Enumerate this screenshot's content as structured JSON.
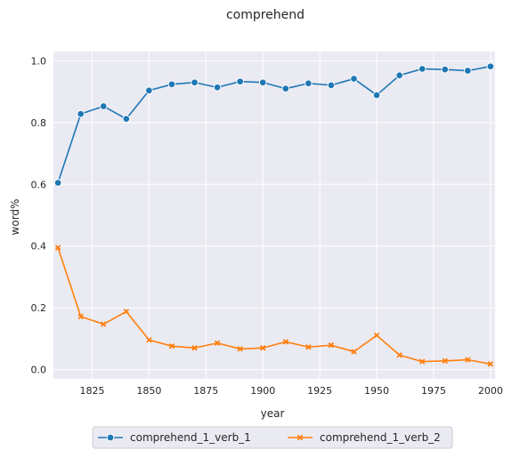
{
  "chart_data": {
    "type": "line",
    "title": "comprehend",
    "xlabel": "year",
    "ylabel": "word%",
    "xlim": [
      1808,
      2002
    ],
    "ylim": [
      -0.03,
      1.03
    ],
    "xticks": [
      1825,
      1850,
      1875,
      1900,
      1925,
      1950,
      1975,
      2000
    ],
    "yticks": [
      0.0,
      0.2,
      0.4,
      0.6,
      0.8,
      1.0
    ],
    "grid": true,
    "background": "#eaeaf2",
    "legend_position": "bottom-center",
    "x": [
      1810,
      1820,
      1830,
      1840,
      1850,
      1860,
      1870,
      1880,
      1890,
      1900,
      1910,
      1920,
      1930,
      1940,
      1950,
      1960,
      1970,
      1980,
      1990,
      2000
    ],
    "series": [
      {
        "name": "comprehend_1_verb_1",
        "color": "#1f77b4",
        "marker": "circle",
        "values": [
          0.605,
          0.828,
          0.853,
          0.812,
          0.904,
          0.924,
          0.93,
          0.914,
          0.933,
          0.93,
          0.91,
          0.927,
          0.921,
          0.942,
          0.889,
          0.953,
          0.974,
          0.972,
          0.968,
          0.982
        ]
      },
      {
        "name": "comprehend_1_verb_2",
        "color": "#ff7f0e",
        "marker": "x",
        "values": [
          0.395,
          0.172,
          0.147,
          0.188,
          0.096,
          0.076,
          0.07,
          0.086,
          0.067,
          0.07,
          0.09,
          0.073,
          0.079,
          0.058,
          0.111,
          0.047,
          0.026,
          0.028,
          0.032,
          0.018
        ]
      }
    ]
  }
}
